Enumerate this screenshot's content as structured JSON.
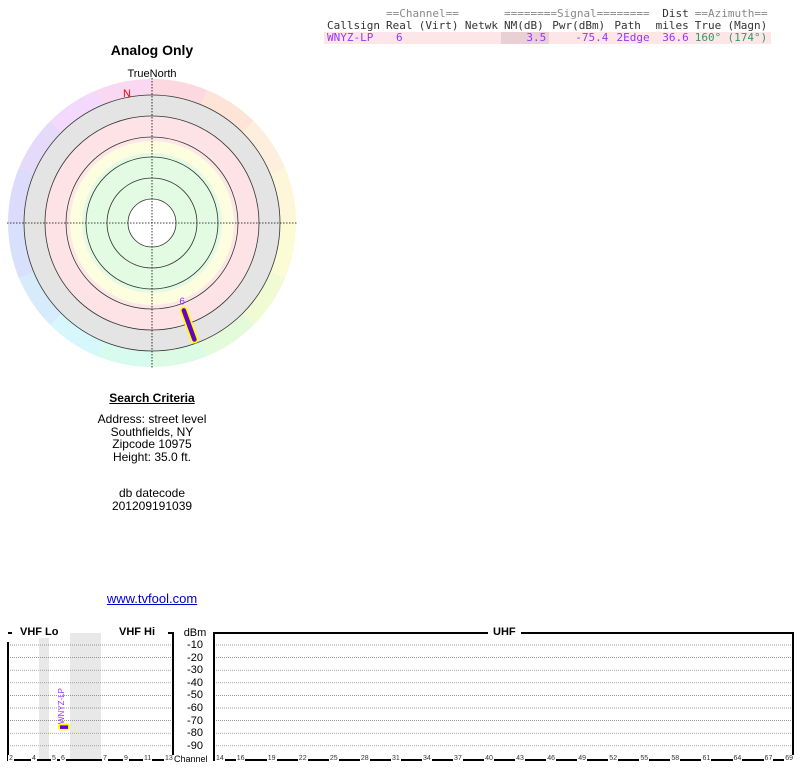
{
  "table": {
    "group_headers": {
      "channel": "==Channel==",
      "signal": "========Signal========",
      "azimuth": "==Azimuth=="
    },
    "columns": [
      "Callsign",
      "Real",
      "(Virt)",
      "Netwk",
      "NM(dB)",
      "Pwr(dBm)",
      "Path",
      "Dist miles",
      "True",
      "(Magn)"
    ],
    "col_dist_top": "Dist",
    "col_dist_bottom": "miles",
    "rows": [
      {
        "callsign": "WNYZ-LP",
        "real": "6",
        "virt": "",
        "netwk": "",
        "nm": "3.5",
        "pwr": "-75.4",
        "path": "2Edge",
        "dist": "36.6",
        "true": "160°",
        "magn": "(174°)"
      }
    ]
  },
  "polar": {
    "title": "Analog Only",
    "north_label": "TrueNorth",
    "n_marker": "N",
    "station_label": "6",
    "station_azimuth_true": 160,
    "station_color": "#6600cc",
    "highlight": "#ffff00"
  },
  "criteria": {
    "title": "Search Criteria",
    "address": "Address: street level",
    "city": "Southfields, NY",
    "zip": "Zipcode 10975",
    "height": "Height: 35.0 ft.",
    "db_label": "db datecode",
    "db_code": "201209191039",
    "link": "www.tvfool.com"
  },
  "spectrum": {
    "vhf_lo": "VHF Lo",
    "vhf_hi": "VHF Hi",
    "uhf": "UHF",
    "unit": "dBm",
    "channel_label": "Channel",
    "dbm_ticks": [
      "-10",
      "-20",
      "-30",
      "-40",
      "-50",
      "-60",
      "-70",
      "-80",
      "-90"
    ],
    "vhf_channels": [
      "2",
      "4",
      "5",
      "6",
      "7",
      "9",
      "11",
      "13"
    ],
    "uhf_channels": [
      "14",
      "16",
      "19",
      "22",
      "25",
      "28",
      "31",
      "34",
      "37",
      "40",
      "43",
      "46",
      "49",
      "52",
      "55",
      "58",
      "61",
      "64",
      "67",
      "69"
    ],
    "stations": [
      {
        "callsign": "WNYZ-LP",
        "channel": 6,
        "pwr_dbm": -75.4
      }
    ]
  }
}
